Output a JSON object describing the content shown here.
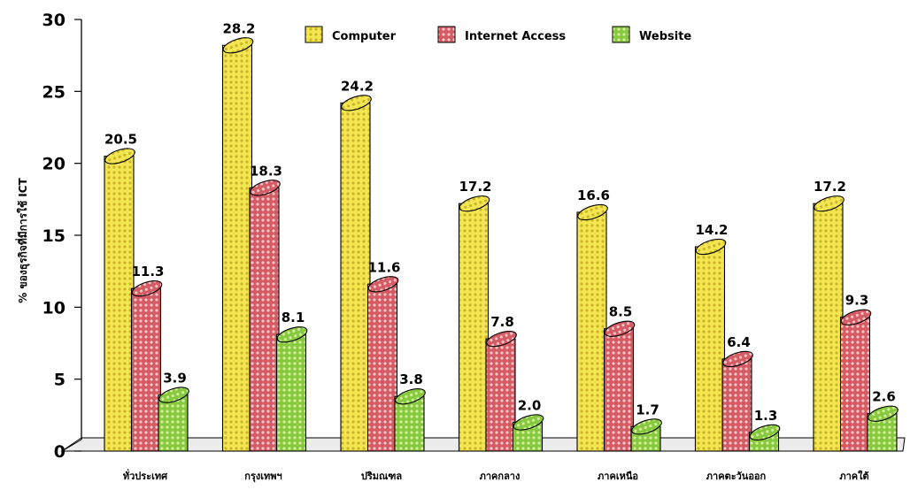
{
  "chart_data": {
    "type": "bar",
    "categories": [
      "ทั่วประเทศ",
      "กรุงเทพฯ",
      "ปริมณฑล",
      "ภาคกลาง",
      "ภาคเหนือ",
      "ภาคตะวันออก",
      "ภาคใต้"
    ],
    "series": [
      {
        "name": "Computer",
        "values": [
          20.5,
          28.2,
          24.2,
          17.2,
          16.6,
          14.2,
          17.2
        ],
        "color": "#f2e34a"
      },
      {
        "name": "Internet Access",
        "values": [
          11.3,
          18.3,
          11.6,
          7.8,
          8.5,
          6.4,
          9.3
        ],
        "color": "#c9505a"
      },
      {
        "name": "Website",
        "values": [
          3.9,
          8.1,
          3.8,
          2.0,
          1.7,
          1.3,
          2.6
        ],
        "color": "#7dc23a"
      }
    ],
    "value_labels": [
      [
        "20.5",
        "28.2",
        "24.2",
        "17.2",
        "16.6",
        "14.2",
        "17.2"
      ],
      [
        "11.3",
        "18.3",
        "11.6",
        "7.8",
        "8.5",
        "6.4",
        "9.3"
      ],
      [
        "3.9",
        "8.1",
        "3.8",
        "2.0",
        "1.7",
        "1.3",
        "2.6"
      ]
    ],
    "ylabel": "% ของธุรกิจที่มีการใช้ ICT",
    "ylim": [
      0,
      30
    ],
    "yticks": [
      0,
      5,
      10,
      15,
      20,
      25,
      30
    ],
    "legend_position": "top",
    "grid": false
  }
}
